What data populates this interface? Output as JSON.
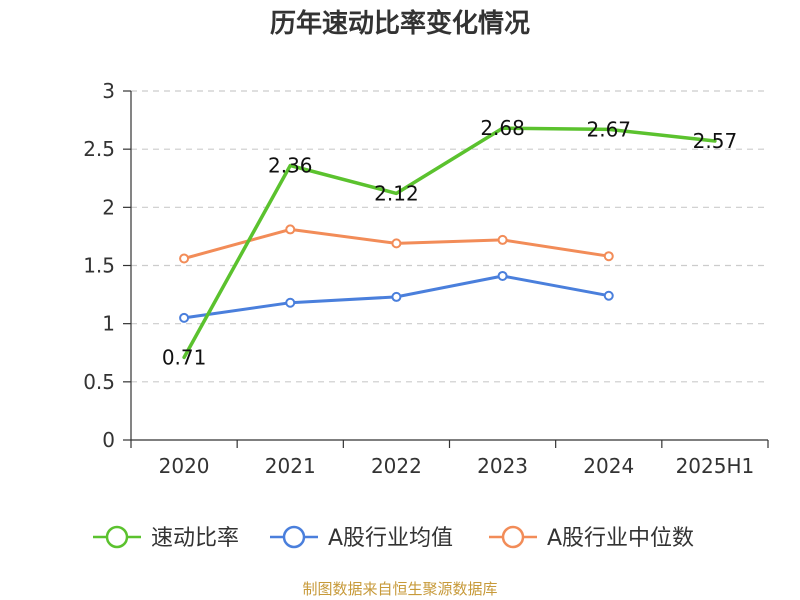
{
  "chart_data": {
    "type": "line",
    "title": "历年速动比率变化情况",
    "categories": [
      "2020",
      "2021",
      "2022",
      "2023",
      "2024",
      "2025H1"
    ],
    "ylim": [
      0,
      3
    ],
    "yticks": [
      0,
      0.5,
      1,
      1.5,
      2,
      2.5,
      3
    ],
    "ytick_labels": [
      "0",
      "0.5",
      "1",
      "1.5",
      "2",
      "2.5",
      "3"
    ],
    "grid": true,
    "legend_position": "bottom",
    "series": [
      {
        "name": "速动比率",
        "color": "#5bc22e",
        "values": [
          0.71,
          2.36,
          2.12,
          2.68,
          2.67,
          2.57
        ],
        "labels": [
          "0.71",
          "2.36",
          "2.12",
          "2.68",
          "2.67",
          "2.57"
        ],
        "show_labels": true,
        "show_markers": false
      },
      {
        "name": "A股行业均值",
        "color": "#4a7fdc",
        "values": [
          1.05,
          1.18,
          1.23,
          1.41,
          1.24,
          null
        ],
        "show_labels": false,
        "show_markers": true
      },
      {
        "name": "A股行业中位数",
        "color": "#f28c58",
        "values": [
          1.56,
          1.81,
          1.69,
          1.72,
          1.58,
          null
        ],
        "show_labels": false,
        "show_markers": true
      }
    ],
    "source": "制图数据来自恒生聚源数据库",
    "source_color": "#c79a3a"
  }
}
